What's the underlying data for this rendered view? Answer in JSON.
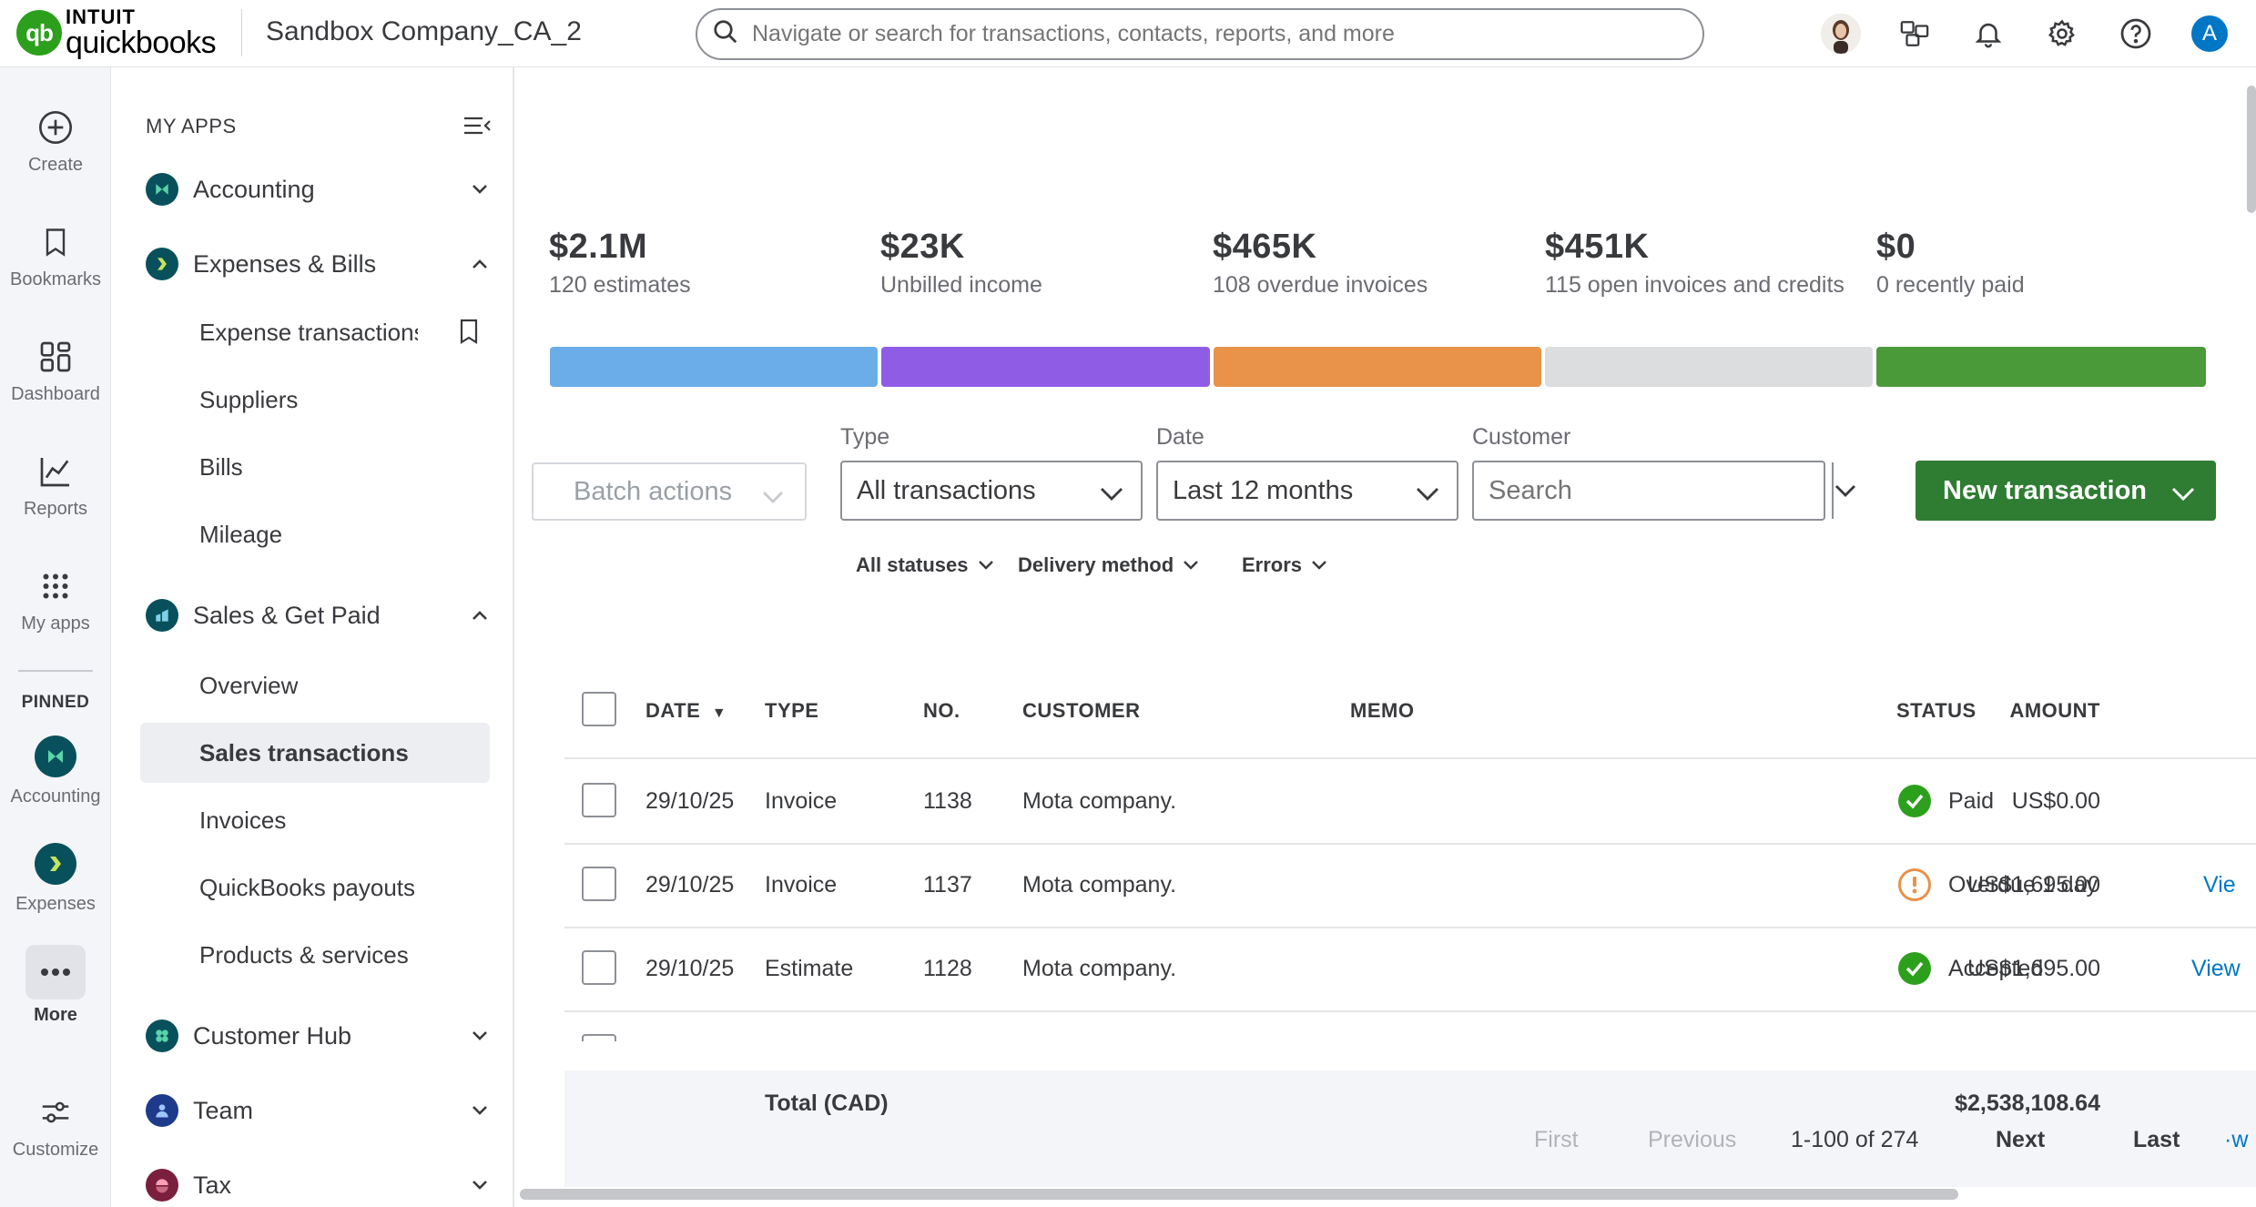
{
  "header": {
    "logo_intuit": "INTUIT",
    "logo_product": "quickbooks",
    "company": "Sandbox Company_CA_2",
    "search_placeholder": "Navigate or search for transactions, contacts, reports, and more",
    "avatar_letter": "A"
  },
  "rail": {
    "items": [
      {
        "label": "Create",
        "icon": "plus-circle-icon"
      },
      {
        "label": "Bookmarks",
        "icon": "bookmark-icon"
      },
      {
        "label": "Dashboard",
        "icon": "dashboard-icon"
      },
      {
        "label": "Reports",
        "icon": "chart-line-icon"
      },
      {
        "label": "My apps",
        "icon": "grid-icon"
      }
    ],
    "pinned_title": "PINNED",
    "pinned": [
      {
        "label": "Accounting",
        "icon": "accounting-icon"
      },
      {
        "label": "Expenses",
        "icon": "expenses-icon"
      }
    ],
    "more_label": "More",
    "customize_label": "Customize"
  },
  "apps": {
    "title": "MY APPS",
    "groups": [
      {
        "label": "Accounting",
        "expanded": false
      },
      {
        "label": "Expenses & Bills",
        "expanded": true
      },
      {
        "label": "Sales & Get Paid",
        "expanded": true
      },
      {
        "label": "Customer Hub",
        "expanded": false
      },
      {
        "label": "Team",
        "expanded": false
      },
      {
        "label": "Tax",
        "expanded": false
      }
    ],
    "expenses_items": [
      "Expense transactions",
      "Suppliers",
      "Bills",
      "Mileage"
    ],
    "sales_items": [
      "Overview",
      "Sales transactions",
      "Invoices",
      "QuickBooks payouts",
      "Products & services"
    ],
    "active_item": "Sales transactions"
  },
  "stats": [
    {
      "value": "$2.1M",
      "label": "120 estimates",
      "color": "#6aade8"
    },
    {
      "value": "$23K",
      "label": "Unbilled income",
      "color": "#8f5ce6"
    },
    {
      "value": "$465K",
      "label": "108 overdue invoices",
      "color": "#e8924a"
    },
    {
      "value": "$451K",
      "label": "115 open invoices and credits",
      "color": "#dcdddf"
    },
    {
      "value": "$0",
      "label": "0 recently paid",
      "color": "#4a9a3a"
    }
  ],
  "filters": {
    "batch_label": "Batch actions",
    "type_label": "Type",
    "type_value": "All transactions",
    "date_label": "Date",
    "date_value": "Last 12 months",
    "customer_label": "Customer",
    "customer_placeholder": "Search",
    "new_tx_label": "New transaction",
    "statuses": "All statuses",
    "delivery": "Delivery method",
    "errors": "Errors"
  },
  "table": {
    "columns": {
      "date": "DATE",
      "sort_arrow": "▼",
      "type": "TYPE",
      "no": "NO.",
      "customer": "CUSTOMER",
      "memo": "MEMO",
      "amount": "AMOUNT",
      "status": "STATUS"
    },
    "rows": [
      {
        "date": "29/10/25",
        "type": "Invoice",
        "no": "1138",
        "customer": "Mota company.",
        "amount": "US$0.00",
        "status": "Paid",
        "status_kind": "ok",
        "action": ""
      },
      {
        "date": "29/10/25",
        "type": "Invoice",
        "no": "1137",
        "customer": "Mota company.",
        "amount": "US$1,695.00",
        "status": "Overdue 1 day",
        "status_kind": "warn",
        "action": "Vie"
      },
      {
        "date": "29/10/25",
        "type": "Estimate",
        "no": "1128",
        "customer": "Mota company.",
        "amount": "US$1,695.00",
        "status": "Accepted",
        "status_kind": "ok",
        "action": "View"
      }
    ],
    "total_label": "Total (CAD)",
    "total_amount": "$2,538,108.64"
  },
  "pager": {
    "first": "First",
    "previous": "Previous",
    "range": "1-100 of 274",
    "next": "Next",
    "last": "Last",
    "overflow": "·w"
  }
}
